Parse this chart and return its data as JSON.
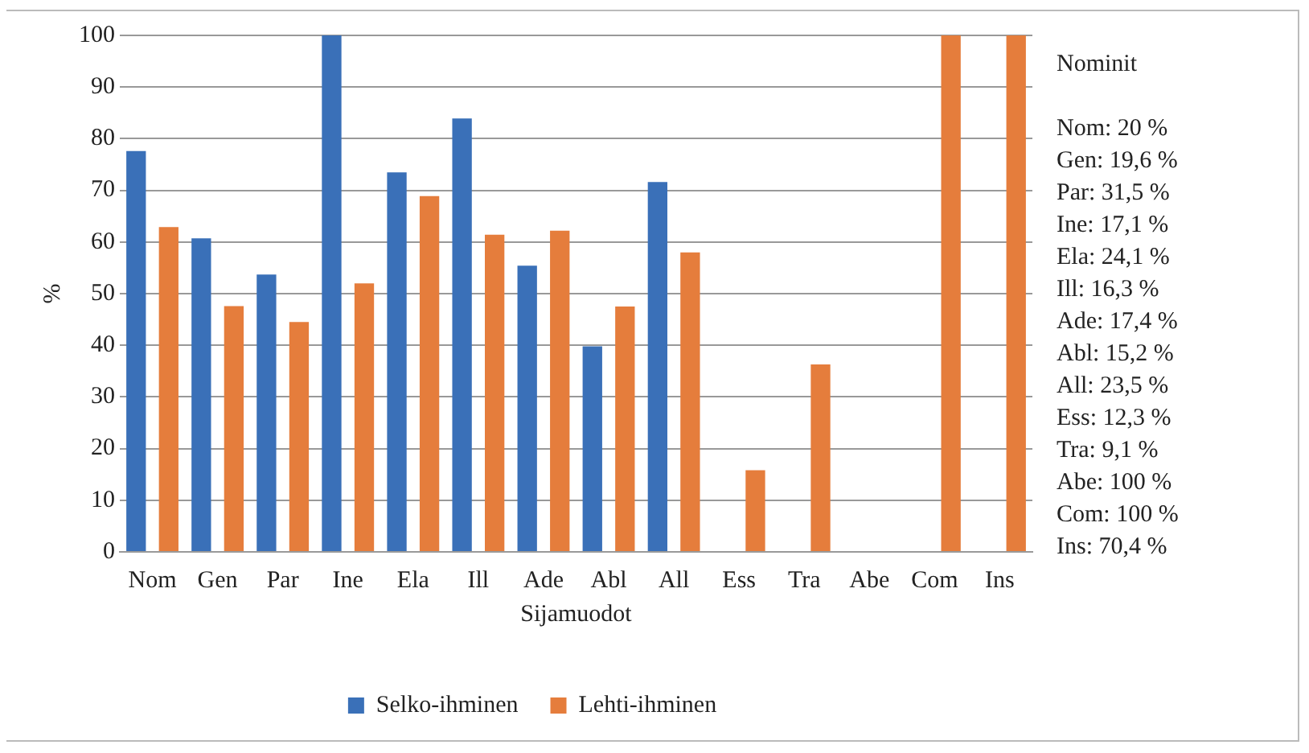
{
  "chart_data": {
    "type": "bar",
    "xlabel": "Sijamuodot",
    "ylabel": "%",
    "categories": [
      "Nom",
      "Gen",
      "Par",
      "Ine",
      "Ela",
      "Ill",
      "Ade",
      "Abl",
      "All",
      "Ess",
      "Tra",
      "Abe",
      "Com",
      "Ins"
    ],
    "series": [
      {
        "name": "Selko-ihminen",
        "color": "#3a70b8",
        "values": [
          77.6,
          60.7,
          53.7,
          100,
          73.5,
          83.9,
          55.4,
          39.8,
          71.6,
          null,
          null,
          null,
          null,
          null
        ]
      },
      {
        "name": "Lehti-ihminen",
        "color": "#e57d3c",
        "values": [
          62.9,
          47.6,
          44.5,
          52.0,
          68.9,
          61.4,
          62.2,
          47.5,
          58.0,
          15.8,
          36.3,
          null,
          100,
          100
        ]
      }
    ],
    "ylim": [
      0,
      100
    ],
    "yticks": [
      0,
      10,
      20,
      30,
      40,
      50,
      60,
      70,
      80,
      90,
      100
    ],
    "grid": "y",
    "legend": "bottom",
    "annotations": [
      "Nominit",
      "Nom: 20 %",
      "Gen: 19,6 %",
      "Par: 31,5 %",
      "Ine: 17,1 %",
      "Ela: 24,1 %",
      "Ill: 16,3 %",
      "Ade: 17,4 %",
      "Abl: 15,2 %",
      "All: 23,5 %",
      "Ess: 12,3 %",
      "Tra: 9,1 %",
      "Abe: 100 %",
      "Com: 100 %",
      "Ins: 70,4 %"
    ]
  }
}
